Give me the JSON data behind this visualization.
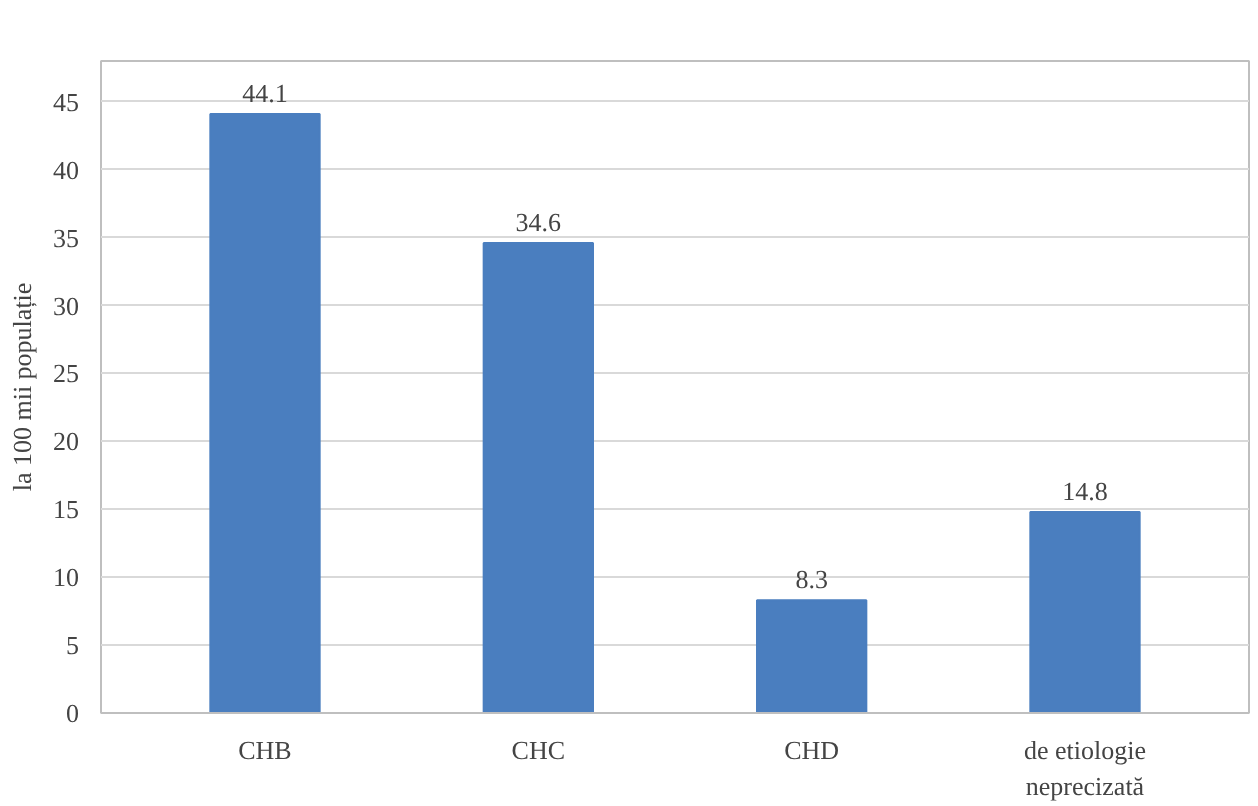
{
  "chart_data": {
    "type": "bar",
    "ylabel": "la 100 mii populație",
    "categories": [
      "CHB",
      "CHC",
      "CHD",
      "de etiologie neprecizată"
    ],
    "values": [
      44.1,
      34.6,
      8.3,
      14.8
    ],
    "color": "#4a7ebf",
    "ylim": [
      0,
      48
    ],
    "yticks": [
      0,
      5,
      10,
      15,
      20,
      25,
      30,
      35,
      40,
      45
    ],
    "grid": "y",
    "data_labels": true
  }
}
